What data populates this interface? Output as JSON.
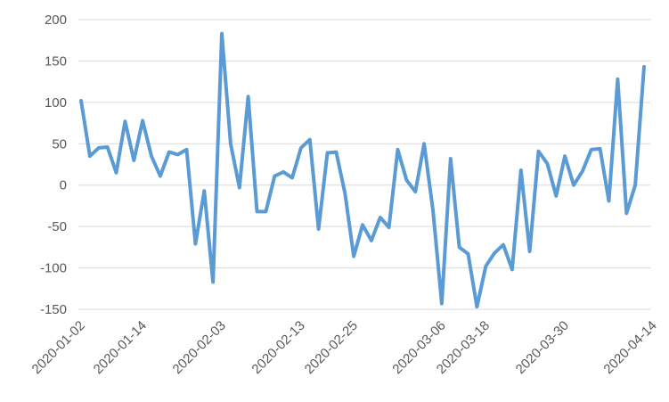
{
  "chart_data": {
    "type": "line",
    "x_tick_labels": [
      "2020-01-02",
      "2020-01-14",
      "2020-02-03",
      "2020-02-13",
      "2020-02-25",
      "2020-03-06",
      "2020-03-18",
      "2020-03-30",
      "2020-04-14"
    ],
    "x_tick_indices": [
      0,
      7,
      16,
      25,
      31,
      41,
      46,
      55,
      65
    ],
    "ylim": [
      -150,
      200
    ],
    "yticks": [
      -150,
      -100,
      -50,
      0,
      50,
      100,
      150,
      200
    ],
    "grid": "horizontal",
    "legend": "none",
    "color": "#5b9bd5",
    "series": [
      {
        "values": [
          102,
          35,
          45,
          46,
          15,
          77,
          30,
          78,
          35,
          11,
          40,
          37,
          43,
          -71,
          -7,
          -117,
          183,
          50,
          -3,
          107,
          -32,
          -32,
          11,
          16,
          9,
          45,
          55,
          -53,
          39,
          40,
          -10,
          -86,
          -48,
          -67,
          -39,
          -51,
          43,
          6,
          -8,
          50,
          -30,
          -143,
          32,
          -75,
          -83,
          -147,
          -98,
          -82,
          -72,
          -102,
          18,
          -80,
          41,
          26,
          -13,
          35,
          0,
          17,
          43,
          44,
          -19,
          128,
          -34,
          0,
          143
        ]
      }
    ]
  }
}
